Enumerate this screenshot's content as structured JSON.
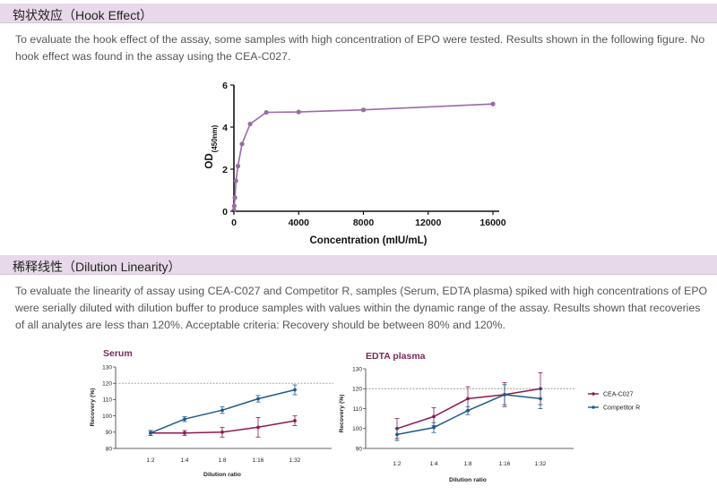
{
  "hook": {
    "title": "钩状效应（Hook Effect）",
    "description": "To evaluate the hook effect of the assay, some samples with high concentration of EPO were tested. Results shown in the following figure. No hook effect was found in the assay using the CEA-C027."
  },
  "dilution": {
    "title": "稀释线性（Dilution Linearity）",
    "description": "To evaluate the linearity of assay using CEA-C027 and Competitor R, samples (Serum, EDTA plasma) spiked with high concentrations of EPO were serially diluted with dilution buffer to produce samples with values within the dynamic range of the assay. Results shown that recoveries of all analytes are less than 120%. Acceptable criteria: Recovery should be between 80% and 120%."
  },
  "colors": {
    "hook": "#9b6aa6",
    "cea": "#8b1a4f",
    "competitor": "#1f5a8a",
    "reference": "#999999"
  },
  "chart_data": [
    {
      "id": "hook",
      "type": "line",
      "title": "",
      "xlabel": "Concentration (mIU/mL)",
      "ylabel": "OD",
      "ylabel_sub": "(450nm)",
      "xlim": [
        0,
        16000
      ],
      "ylim": [
        0,
        6
      ],
      "xticks": [
        "0",
        "4000",
        "8000",
        "12000",
        "16000"
      ],
      "yticks": [
        "0",
        "2",
        "4",
        "6"
      ],
      "x": [
        0,
        20,
        60,
        125,
        250,
        500,
        1000,
        2000,
        4000,
        8000,
        16000
      ],
      "y": [
        0.05,
        0.25,
        0.65,
        1.45,
        2.15,
        3.2,
        4.15,
        4.7,
        4.72,
        4.82,
        5.1
      ]
    },
    {
      "id": "serum",
      "type": "line",
      "title": "Serum",
      "xlabel": "Dilution ratio",
      "ylabel": "Recovery (%)",
      "categories": [
        "1:2",
        "1:4",
        "1:8",
        "1:16",
        "1:32"
      ],
      "ylim": [
        80,
        130
      ],
      "yticks": [
        "80",
        "90",
        "100",
        "110",
        "120",
        "130"
      ],
      "reference_line": 120,
      "series": [
        {
          "name": "CEA-C027",
          "values": [
            89.5,
            89.5,
            90,
            93,
            97
          ],
          "errors": [
            1.5,
            1.5,
            3,
            6,
            3
          ]
        },
        {
          "name": "Competitor R",
          "values": [
            89.5,
            98,
            103.5,
            110.5,
            116
          ],
          "errors": [
            1.5,
            1.5,
            2,
            2,
            3
          ]
        }
      ]
    },
    {
      "id": "edta",
      "type": "line",
      "title": "EDTA plasma",
      "xlabel": "Dilution ratio",
      "ylabel": "Recovery (%)",
      "categories": [
        "1:2",
        "1:4",
        "1:8",
        "1:16",
        "1:32"
      ],
      "ylim": [
        90,
        130
      ],
      "yticks": [
        "90",
        "100",
        "110",
        "120",
        "130"
      ],
      "reference_line": 120,
      "legend": [
        "CEA-C027",
        "Competitor R"
      ],
      "series": [
        {
          "name": "CEA-C027",
          "values": [
            100,
            106,
            115,
            117,
            120
          ],
          "errors": [
            5,
            4.5,
            6,
            6,
            8
          ]
        },
        {
          "name": "Competitor R",
          "values": [
            97,
            100.5,
            109,
            117,
            115
          ],
          "errors": [
            3,
            2.5,
            2,
            5,
            5
          ]
        }
      ]
    }
  ]
}
